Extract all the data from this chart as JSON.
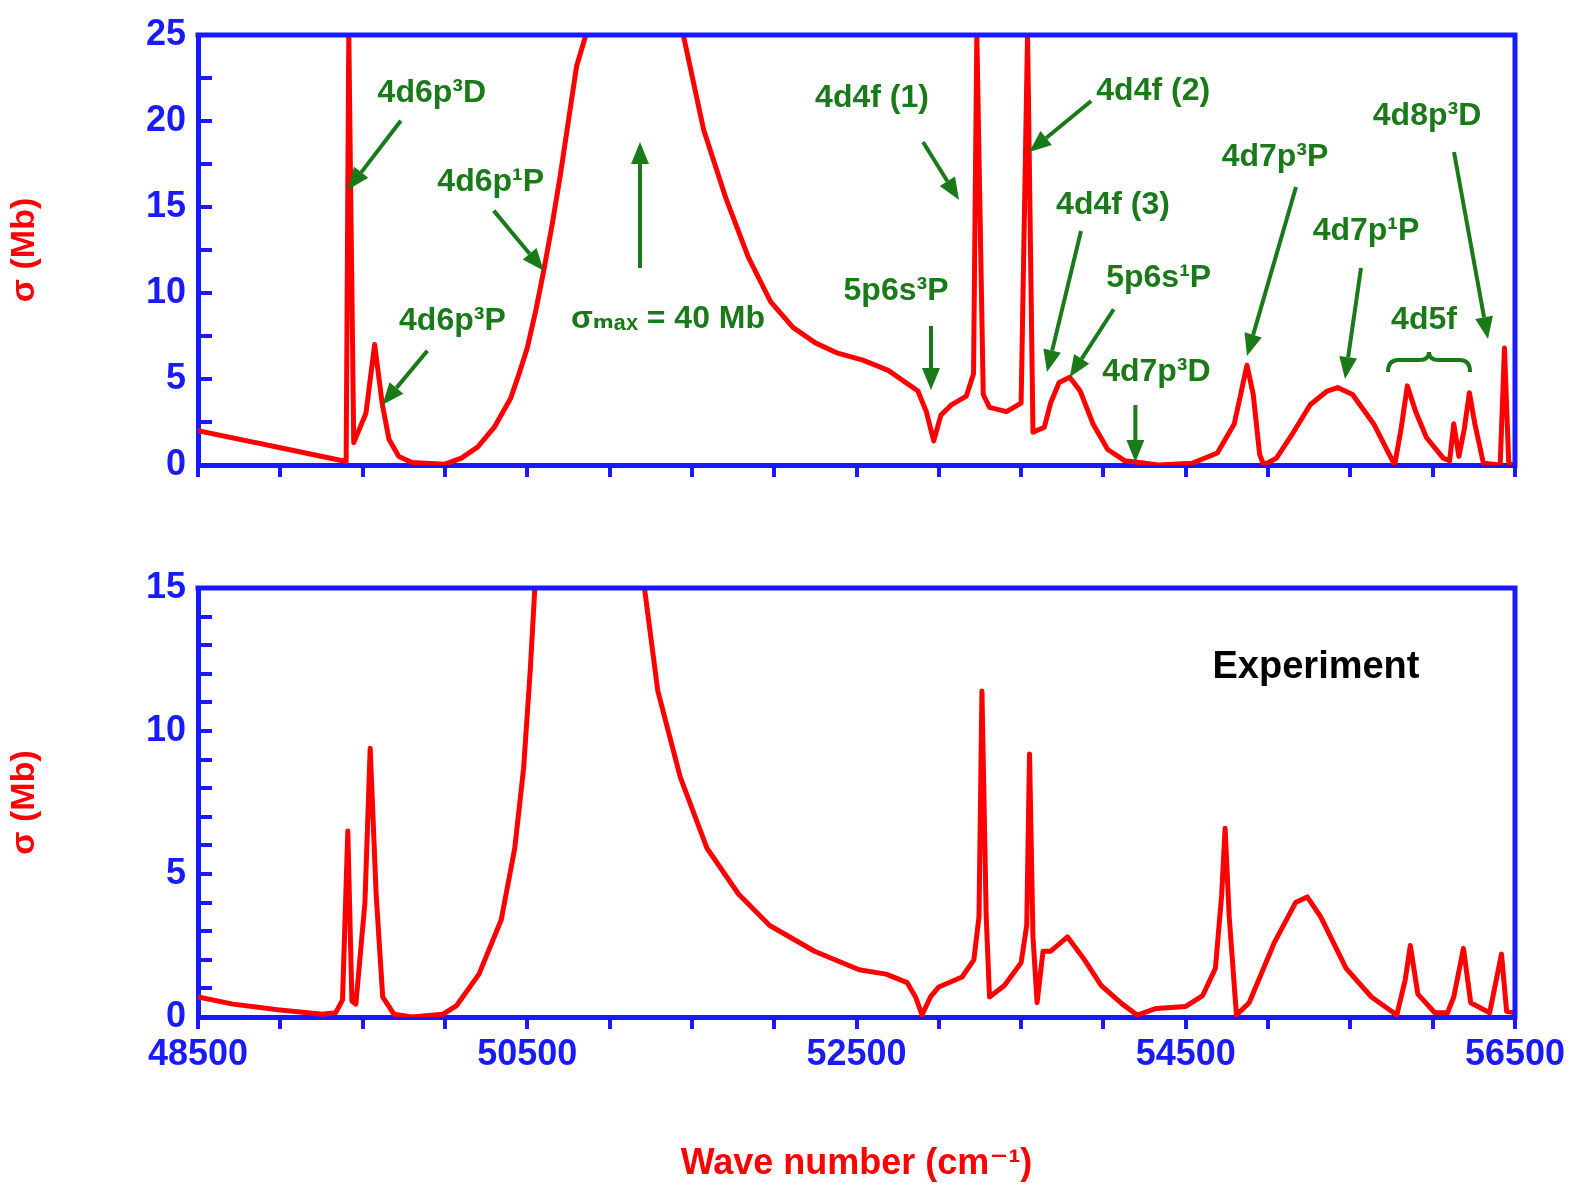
{
  "chart_data": [
    {
      "type": "line",
      "ylabel": "σ (Mb)",
      "color": "#ff0000",
      "marker": "none",
      "line_style": "solid",
      "grid": false,
      "legend": false,
      "tick_labels": "y",
      "xlim": [
        48500,
        56500
      ],
      "ylim": [
        0,
        25
      ],
      "xticks": [
        48500,
        {
          "value": 49000,
          "label": null
        },
        {
          "value": 49500,
          "label": null
        },
        {
          "value": 50000,
          "label": null
        },
        50500,
        {
          "value": 51000,
          "label": null
        },
        {
          "value": 51500,
          "label": null
        },
        {
          "value": 52000,
          "label": null
        },
        52500,
        {
          "value": 53000,
          "label": null
        },
        {
          "value": 53500,
          "label": null
        },
        {
          "value": 54000,
          "label": null
        },
        54500,
        {
          "value": 55000,
          "label": null
        },
        {
          "value": 55500,
          "label": null
        },
        {
          "value": 56000,
          "label": null
        },
        56500
      ],
      "yticks": [
        0,
        {
          "value": 2.5,
          "label": null
        },
        5,
        {
          "value": 7.5,
          "label": null
        },
        10,
        {
          "value": 12.5,
          "label": null
        },
        15,
        {
          "value": 17.5,
          "label": null
        },
        20,
        {
          "value": 22.5,
          "label": null
        },
        25
      ],
      "x": [
        48500,
        49000,
        49400,
        49410,
        49416,
        49446,
        49520,
        49573,
        49620,
        49660,
        49720,
        49800,
        50000,
        50100,
        50200,
        50300,
        50400,
        50450,
        50500,
        50550,
        50600,
        50650,
        50700,
        50750,
        50800,
        50856,
        51150,
        51448,
        51571,
        51707,
        51842,
        51978,
        52114,
        52250,
        52386,
        52539,
        52693,
        52873,
        52924,
        52969,
        53013,
        53077,
        53167,
        53211,
        53221,
        53231,
        53270,
        53308,
        53411,
        53500,
        53539,
        53549,
        53572,
        53641,
        53679,
        53731,
        53795,
        53859,
        53936,
        54026,
        54128,
        54194,
        54333,
        54538,
        54692,
        54795,
        54838,
        54872,
        54910,
        54949,
        54974,
        55051,
        55154,
        55256,
        55359,
        55423,
        55513,
        55641,
        55769,
        55808,
        55846,
        55897,
        55962,
        56064,
        56103,
        56128,
        56159,
        56192,
        56223,
        56256,
        56308,
        56410,
        56436,
        56462,
        56500
      ],
      "values": [
        2.0,
        1.0,
        0.2,
        16,
        25,
        1.3,
        3.0,
        7.0,
        3.5,
        1.5,
        0.5,
        0.15,
        0.05,
        0.4,
        1.05,
        2.2,
        3.9,
        5.3,
        6.8,
        8.9,
        11.3,
        13.9,
        16.8,
        20,
        23.2,
        25,
        null,
        25,
        19.5,
        15.5,
        12.1,
        9.5,
        8.0,
        7.1,
        6.5,
        6.1,
        5.5,
        4.3,
        3.1,
        1.4,
        2.9,
        3.5,
        4.0,
        5.3,
        15.4,
        25,
        4.1,
        3.35,
        3.1,
        3.6,
        25,
        18.2,
        1.9,
        2.2,
        3.6,
        4.8,
        5.1,
        4.3,
        2.4,
        0.9,
        0.25,
        0.17,
        0,
        0.1,
        0.7,
        2.4,
        4.3,
        5.8,
        4.1,
        0.6,
        0,
        0.4,
        1.9,
        3.5,
        4.3,
        4.5,
        4.1,
        2.4,
        0,
        2.1,
        4.6,
        3.1,
        1.6,
        0.4,
        0.25,
        2.4,
        0.5,
        2.1,
        4.2,
        2.4,
        0.1,
        0,
        6.8,
        0.1,
        0
      ],
      "annotations": [
        {
          "text": "4d6p³D",
          "x": 49410,
          "y": 16
        },
        {
          "text": "4d6p¹P",
          "x": 50600,
          "y": 11.3
        },
        {
          "text": "4d6p³P",
          "x": 49620,
          "y": 3.5
        },
        "σₘₐₓ = 40 Mb",
        "4d4f (1)",
        {
          "text": "4d4f (2)",
          "x": 53549,
          "y": 18.2
        },
        "5p6s³P",
        "4d4f (3)",
        {
          "text": "5p6s¹P",
          "x": 53795,
          "y": 5.1
        },
        {
          "text": "4d7p³D",
          "x": 54194,
          "y": 0.17
        },
        "4d7p³P",
        "4d7p¹P",
        "4d8p³D",
        "4d5f"
      ]
    },
    {
      "type": "line",
      "xlabel": "Wave number (cm⁻¹)",
      "ylabel": "σ (Mb)",
      "color": "#ff0000",
      "marker": "none",
      "line_style": "solid",
      "grid": false,
      "legend": false,
      "xlim": [
        48500,
        56500
      ],
      "ylim": [
        0,
        15
      ],
      "xticks": [
        48500,
        {
          "value": 49000,
          "label": null
        },
        {
          "value": 49500,
          "label": null
        },
        {
          "value": 50000,
          "label": null
        },
        50500,
        {
          "value": 51000,
          "label": null
        },
        {
          "value": 51500,
          "label": null
        },
        {
          "value": 52000,
          "label": null
        },
        52500,
        {
          "value": 53000,
          "label": null
        },
        {
          "value": 53500,
          "label": null
        },
        {
          "value": 54000,
          "label": null
        },
        54500,
        {
          "value": 55000,
          "label": null
        },
        {
          "value": 55500,
          "label": null
        },
        {
          "value": 56000,
          "label": null
        },
        56500
      ],
      "yticks": [
        0,
        {
          "value": 1,
          "label": null
        },
        {
          "value": 2,
          "label": null
        },
        {
          "value": 3,
          "label": null
        },
        {
          "value": 4,
          "label": null
        },
        5,
        {
          "value": 6,
          "label": null
        },
        {
          "value": 7,
          "label": null
        },
        {
          "value": 8,
          "label": null
        },
        {
          "value": 9,
          "label": null
        },
        10,
        {
          "value": 11,
          "label": null
        },
        {
          "value": 12,
          "label": null
        },
        {
          "value": 13,
          "label": null
        },
        {
          "value": 14,
          "label": null
        },
        15
      ],
      "x": [
        48500,
        48712,
        48984,
        49255,
        49337,
        49378,
        49410,
        49435,
        49459,
        49514,
        49546,
        49582,
        49622,
        49690,
        49799,
        49989,
        50071,
        50207,
        50342,
        50424,
        50478,
        50519,
        50546,
        50880,
        51212,
        51293,
        51429,
        51592,
        51783,
        51973,
        52245,
        52516,
        52680,
        52808,
        52859,
        52898,
        52949,
        53000,
        53141,
        53213,
        53244,
        53262,
        53288,
        53308,
        53398,
        53500,
        53534,
        53551,
        53572,
        53597,
        53633,
        53680,
        53782,
        53885,
        53987,
        54115,
        54205,
        54321,
        54500,
        54603,
        54680,
        54718,
        54739,
        54764,
        54808,
        54885,
        55038,
        55167,
        55238,
        55320,
        55474,
        55628,
        55782,
        55833,
        55864,
        55910,
        56013,
        56090,
        56128,
        56187,
        56231,
        56346,
        56418,
        56449,
        56500
      ],
      "values": [
        0.7,
        0.45,
        0.25,
        0.1,
        0.15,
        0.6,
        6.5,
        0.55,
        0.45,
        4,
        9.4,
        4.3,
        0.7,
        0.1,
        0,
        0.1,
        0.4,
        1.5,
        3.4,
        5.9,
        8.7,
        12.2,
        15,
        null,
        15,
        11.4,
        8.4,
        5.9,
        4.3,
        3.2,
        2.3,
        1.65,
        1.5,
        1.2,
        0.7,
        0.07,
        0.7,
        1.05,
        1.4,
        2.0,
        3.5,
        11.4,
        3.5,
        0.7,
        1.1,
        1.9,
        3.2,
        9.2,
        2.8,
        0.5,
        2.3,
        2.3,
        2.8,
        2.0,
        1.1,
        0.45,
        0.07,
        0.3,
        0.37,
        0.75,
        1.7,
        4.25,
        6.6,
        3.5,
        0.07,
        0.5,
        2.6,
        4.0,
        4.2,
        3.5,
        1.7,
        0.7,
        0.07,
        1.3,
        2.5,
        0.8,
        0.15,
        0.15,
        0.7,
        2.4,
        0.5,
        0.15,
        2.2,
        0.2,
        0.15
      ],
      "annotations": [
        "Experiment"
      ]
    }
  ]
}
